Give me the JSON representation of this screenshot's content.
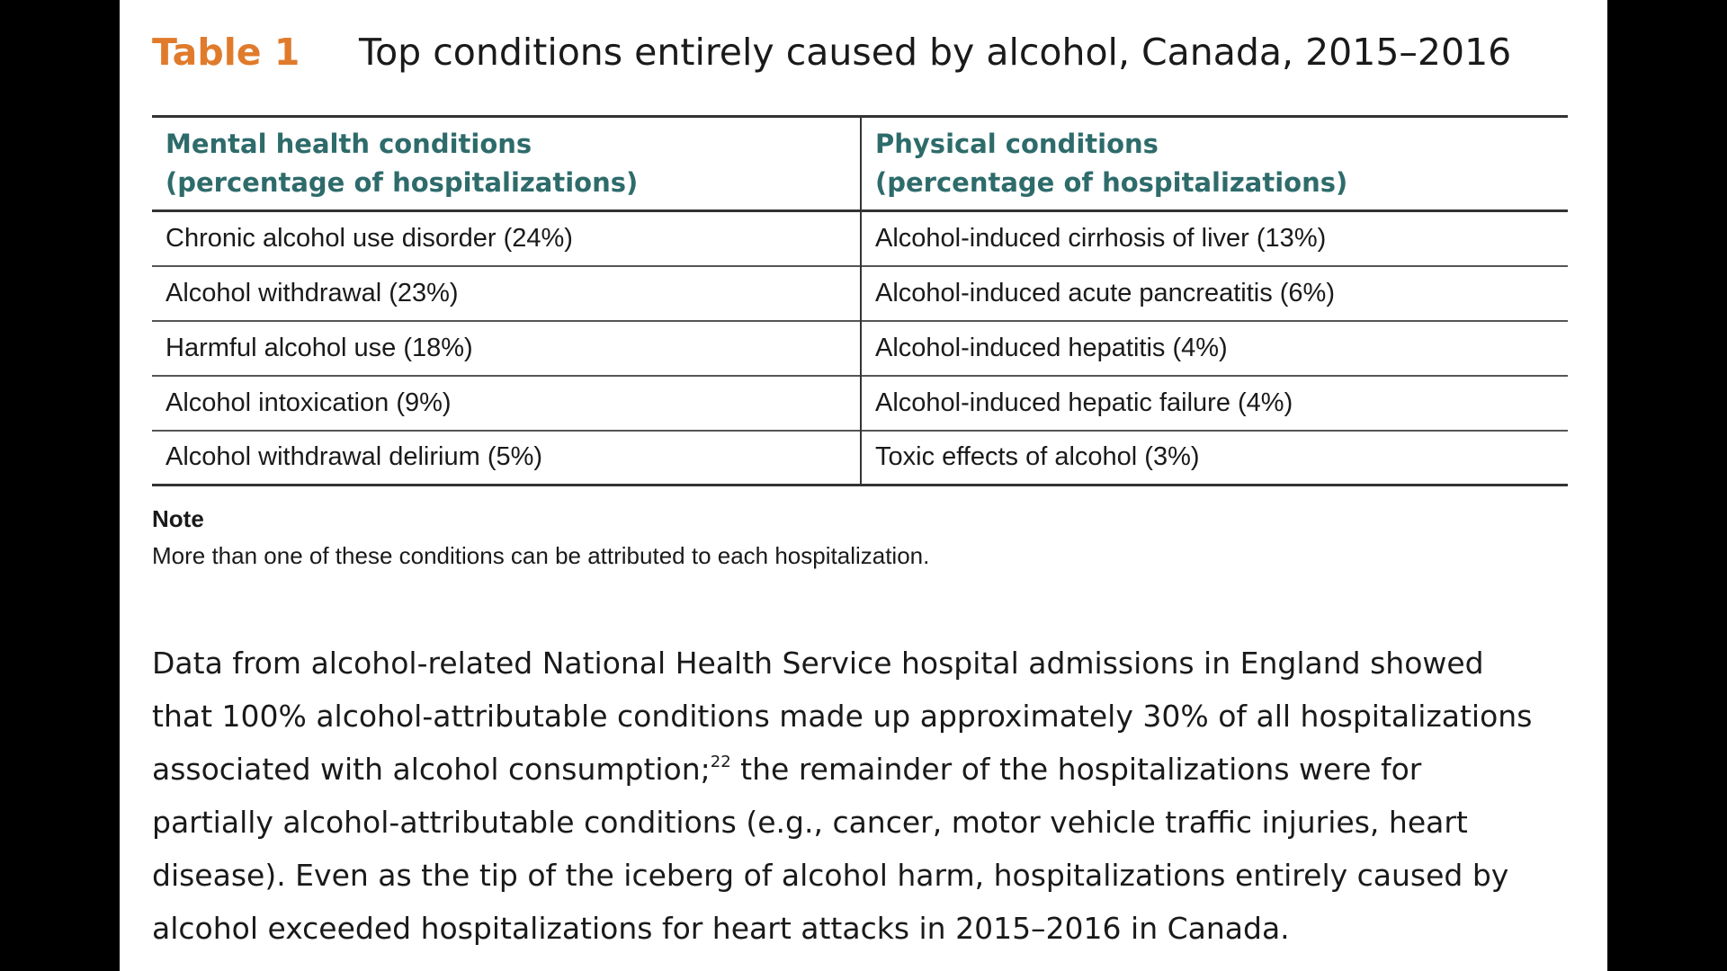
{
  "table": {
    "number": "Table 1",
    "title": "Top conditions entirely caused by alcohol, Canada, 2015–2016",
    "header_left": [
      "Mental health conditions",
      "(percentage of hospitalizations)"
    ],
    "header_right": [
      "Physical conditions",
      "(percentage of hospitalizations)"
    ],
    "rows": [
      [
        "Chronic alcohol use disorder (24%)",
        "Alcohol-induced cirrhosis of liver (13%)"
      ],
      [
        "Alcohol withdrawal (23%)",
        "Alcohol-induced acute pancreatitis (6%)"
      ],
      [
        "Harmful alcohol use (18%)",
        "Alcohol-induced hepatitis (4%)"
      ],
      [
        "Alcohol intoxication (9%)",
        "Alcohol-induced hepatic failure (4%)"
      ],
      [
        "Alcohol withdrawal delirium (5%)",
        "Toxic effects of alcohol (3%)"
      ]
    ]
  },
  "note": {
    "label": "Note",
    "text": "More than one of these conditions can be attributed to each hospitalization."
  },
  "paragraph": {
    "line1": "Data from alcohol-related National Health Service hospital admissions in England showed",
    "line2": "that 100% alcohol-attributable conditions made up approximately 30% of all hospitalizations",
    "line3_before": "associated with alcohol consumption;",
    "line3_ref": "22",
    "line3_after": " the remainder of the hospitalizations were for",
    "line4": "partially alcohol-attributable conditions (e.g., cancer, motor vehicle traffic injuries, heart",
    "line5": "disease). Even as the tip of the iceberg of alcohol harm, hospitalizations entirely caused by",
    "line6": "alcohol exceeded hospitalizations for heart attacks in 2015–2016 in Canada."
  },
  "colors": {
    "table_number": "#e07b2c",
    "column_header": "#2e6b6b",
    "background": "#000000",
    "page": "#ffffff"
  }
}
